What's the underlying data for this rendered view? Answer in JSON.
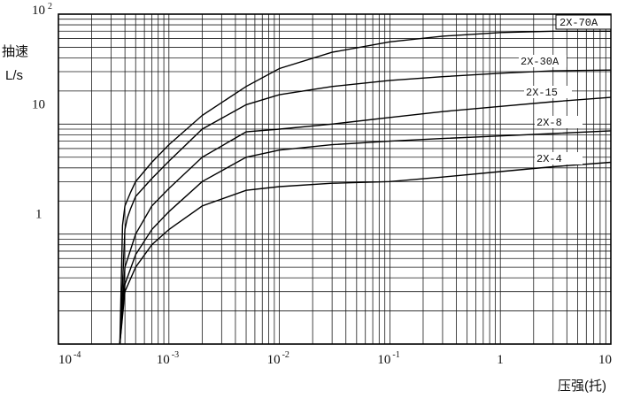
{
  "chart_data": {
    "type": "line",
    "x_scale": "log",
    "y_scale": "log",
    "xlim": [
      0.0001,
      10
    ],
    "ylim": [
      0.1,
      100
    ],
    "grid": true,
    "ylabel_line1": "抽速",
    "ylabel_line2": "L/s",
    "xlabel": "压强(托)",
    "x_ticks": [
      {
        "base": "10",
        "exp": "-4",
        "value": 0.0001
      },
      {
        "base": "10",
        "exp": "-3",
        "value": 0.001
      },
      {
        "base": "10",
        "exp": "-2",
        "value": 0.01
      },
      {
        "base": "10",
        "exp": "-1",
        "value": 0.1
      },
      {
        "base": "1",
        "exp": "",
        "value": 1
      },
      {
        "base": "10",
        "exp": "",
        "value": 10
      }
    ],
    "y_ticks": [
      {
        "base": "10",
        "exp": "2",
        "value": 100
      },
      {
        "base": "10",
        "exp": "",
        "value": 10
      },
      {
        "base": "1",
        "exp": "",
        "value": 1
      }
    ],
    "series": [
      {
        "name": "2X-70A",
        "x": [
          0.00036,
          0.00038,
          0.0004,
          0.00045,
          0.0005,
          0.0007,
          0.001,
          0.002,
          0.005,
          0.01,
          0.03,
          0.1,
          0.3,
          1,
          3,
          10
        ],
        "y": [
          0.1,
          1.2,
          1.8,
          2.4,
          3,
          4.5,
          6.5,
          12,
          22,
          32,
          45,
          56,
          63,
          68,
          70,
          70
        ]
      },
      {
        "name": "2X-30A",
        "x": [
          0.00036,
          0.0004,
          0.00042,
          0.00045,
          0.0005,
          0.0007,
          0.001,
          0.002,
          0.005,
          0.01,
          0.03,
          0.1,
          0.3,
          1,
          3,
          10
        ],
        "y": [
          0.1,
          1.1,
          1.4,
          1.7,
          2.2,
          3.2,
          4.6,
          9,
          15,
          18.5,
          22,
          25,
          27,
          29,
          30.5,
          31
        ]
      },
      {
        "name": "2X-15",
        "x": [
          0.00036,
          0.0004,
          0.0005,
          0.0007,
          0.001,
          0.002,
          0.005,
          0.01,
          0.03,
          0.1,
          0.3,
          1,
          3,
          10
        ],
        "y": [
          0.1,
          0.5,
          1,
          1.8,
          2.6,
          5,
          8.5,
          9,
          10,
          11.5,
          13,
          14.5,
          16,
          17.5
        ]
      },
      {
        "name": "2X-8",
        "x": [
          0.00036,
          0.0004,
          0.0005,
          0.0007,
          0.001,
          0.002,
          0.005,
          0.01,
          0.03,
          0.1,
          0.3,
          1,
          3,
          10
        ],
        "y": [
          0.1,
          0.35,
          0.65,
          1.1,
          1.6,
          3,
          5,
          5.8,
          6.5,
          7,
          7.4,
          7.8,
          8.2,
          8.7
        ]
      },
      {
        "name": "2X-4",
        "x": [
          0.00036,
          0.0004,
          0.0005,
          0.0007,
          0.001,
          0.002,
          0.005,
          0.01,
          0.03,
          0.1,
          0.3,
          1,
          3,
          10
        ],
        "y": [
          0.1,
          0.3,
          0.5,
          0.8,
          1.1,
          1.8,
          2.5,
          2.7,
          2.9,
          3,
          3.3,
          3.7,
          4.1,
          4.5
        ]
      }
    ]
  }
}
